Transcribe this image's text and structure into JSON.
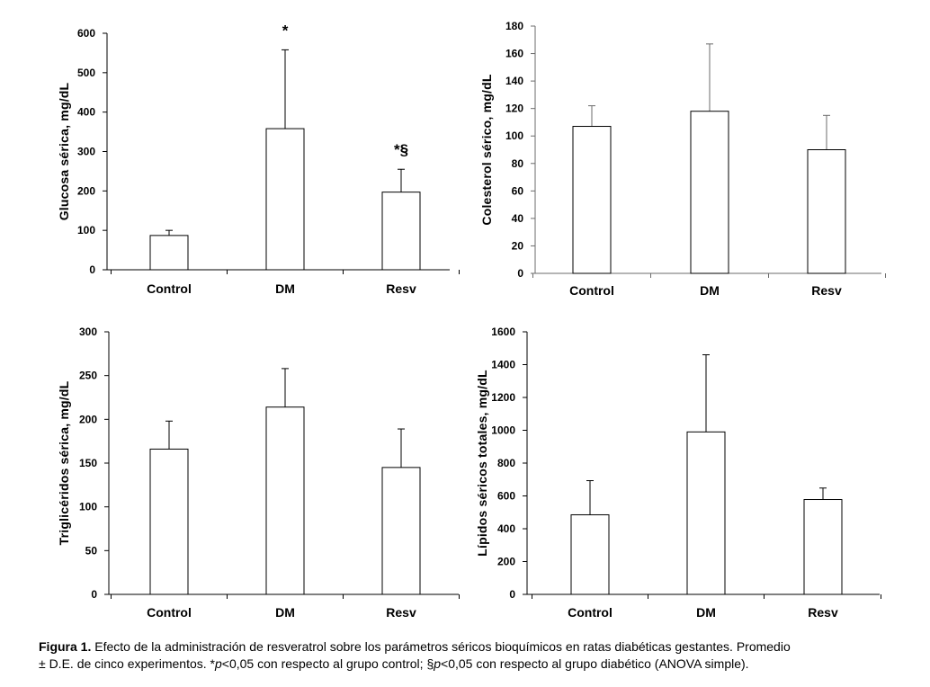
{
  "caption": {
    "figure_label": "Figura 1.",
    "line1_text": " Efecto de la administración de resveratrol sobre los parámetros séricos bioquímicos en ratas diabéticas gestantes. Promedio",
    "line2_a": "± D.E. de cinco experimentos. *",
    "line2_p1": "p",
    "line2_b": "<0,05 con respecto al grupo control; §",
    "line2_p2": "p",
    "line2_c": "<0,05 con respecto al grupo diabético (ANOVA simple)."
  },
  "chart_data": [
    {
      "type": "bar",
      "categories": [
        "Control",
        "DM",
        "Resv"
      ],
      "values": [
        87,
        358,
        197
      ],
      "error": [
        13,
        200,
        58
      ],
      "annotations": [
        "",
        "*",
        "*§"
      ],
      "ylabel": "Glucosa sérica, mg/dL",
      "ylim": [
        0,
        600
      ],
      "yticks": [
        0,
        100,
        200,
        300,
        400,
        500,
        600
      ],
      "grid": false
    },
    {
      "type": "bar",
      "categories": [
        "Control",
        "DM",
        "Resv"
      ],
      "values": [
        107,
        118,
        90
      ],
      "error": [
        15,
        49,
        25
      ],
      "annotations": [
        "",
        "",
        ""
      ],
      "ylabel": "Colesterol sérico, mg/dL",
      "ylim": [
        0,
        180
      ],
      "yticks": [
        0,
        20,
        40,
        60,
        80,
        100,
        120,
        140,
        160,
        180
      ],
      "grid": false
    },
    {
      "type": "bar",
      "categories": [
        "Control",
        "DM",
        "Resv"
      ],
      "values": [
        166,
        214,
        145
      ],
      "error": [
        32,
        44,
        44
      ],
      "annotations": [
        "",
        "",
        ""
      ],
      "ylabel": "Triglicéridos sérica, mg/dL",
      "ylim": [
        0,
        300
      ],
      "yticks": [
        0,
        50,
        100,
        150,
        200,
        250,
        300
      ],
      "grid": false
    },
    {
      "type": "bar",
      "categories": [
        "Control",
        "DM",
        "Resv"
      ],
      "values": [
        485,
        990,
        578
      ],
      "error": [
        208,
        470,
        70
      ],
      "annotations": [
        "",
        "",
        ""
      ],
      "ylabel": "Lípidos séricos totales, mg/dL",
      "ylim": [
        0,
        1600
      ],
      "yticks": [
        0,
        200,
        400,
        600,
        800,
        1000,
        1200,
        1400,
        1600
      ],
      "grid": false
    }
  ]
}
